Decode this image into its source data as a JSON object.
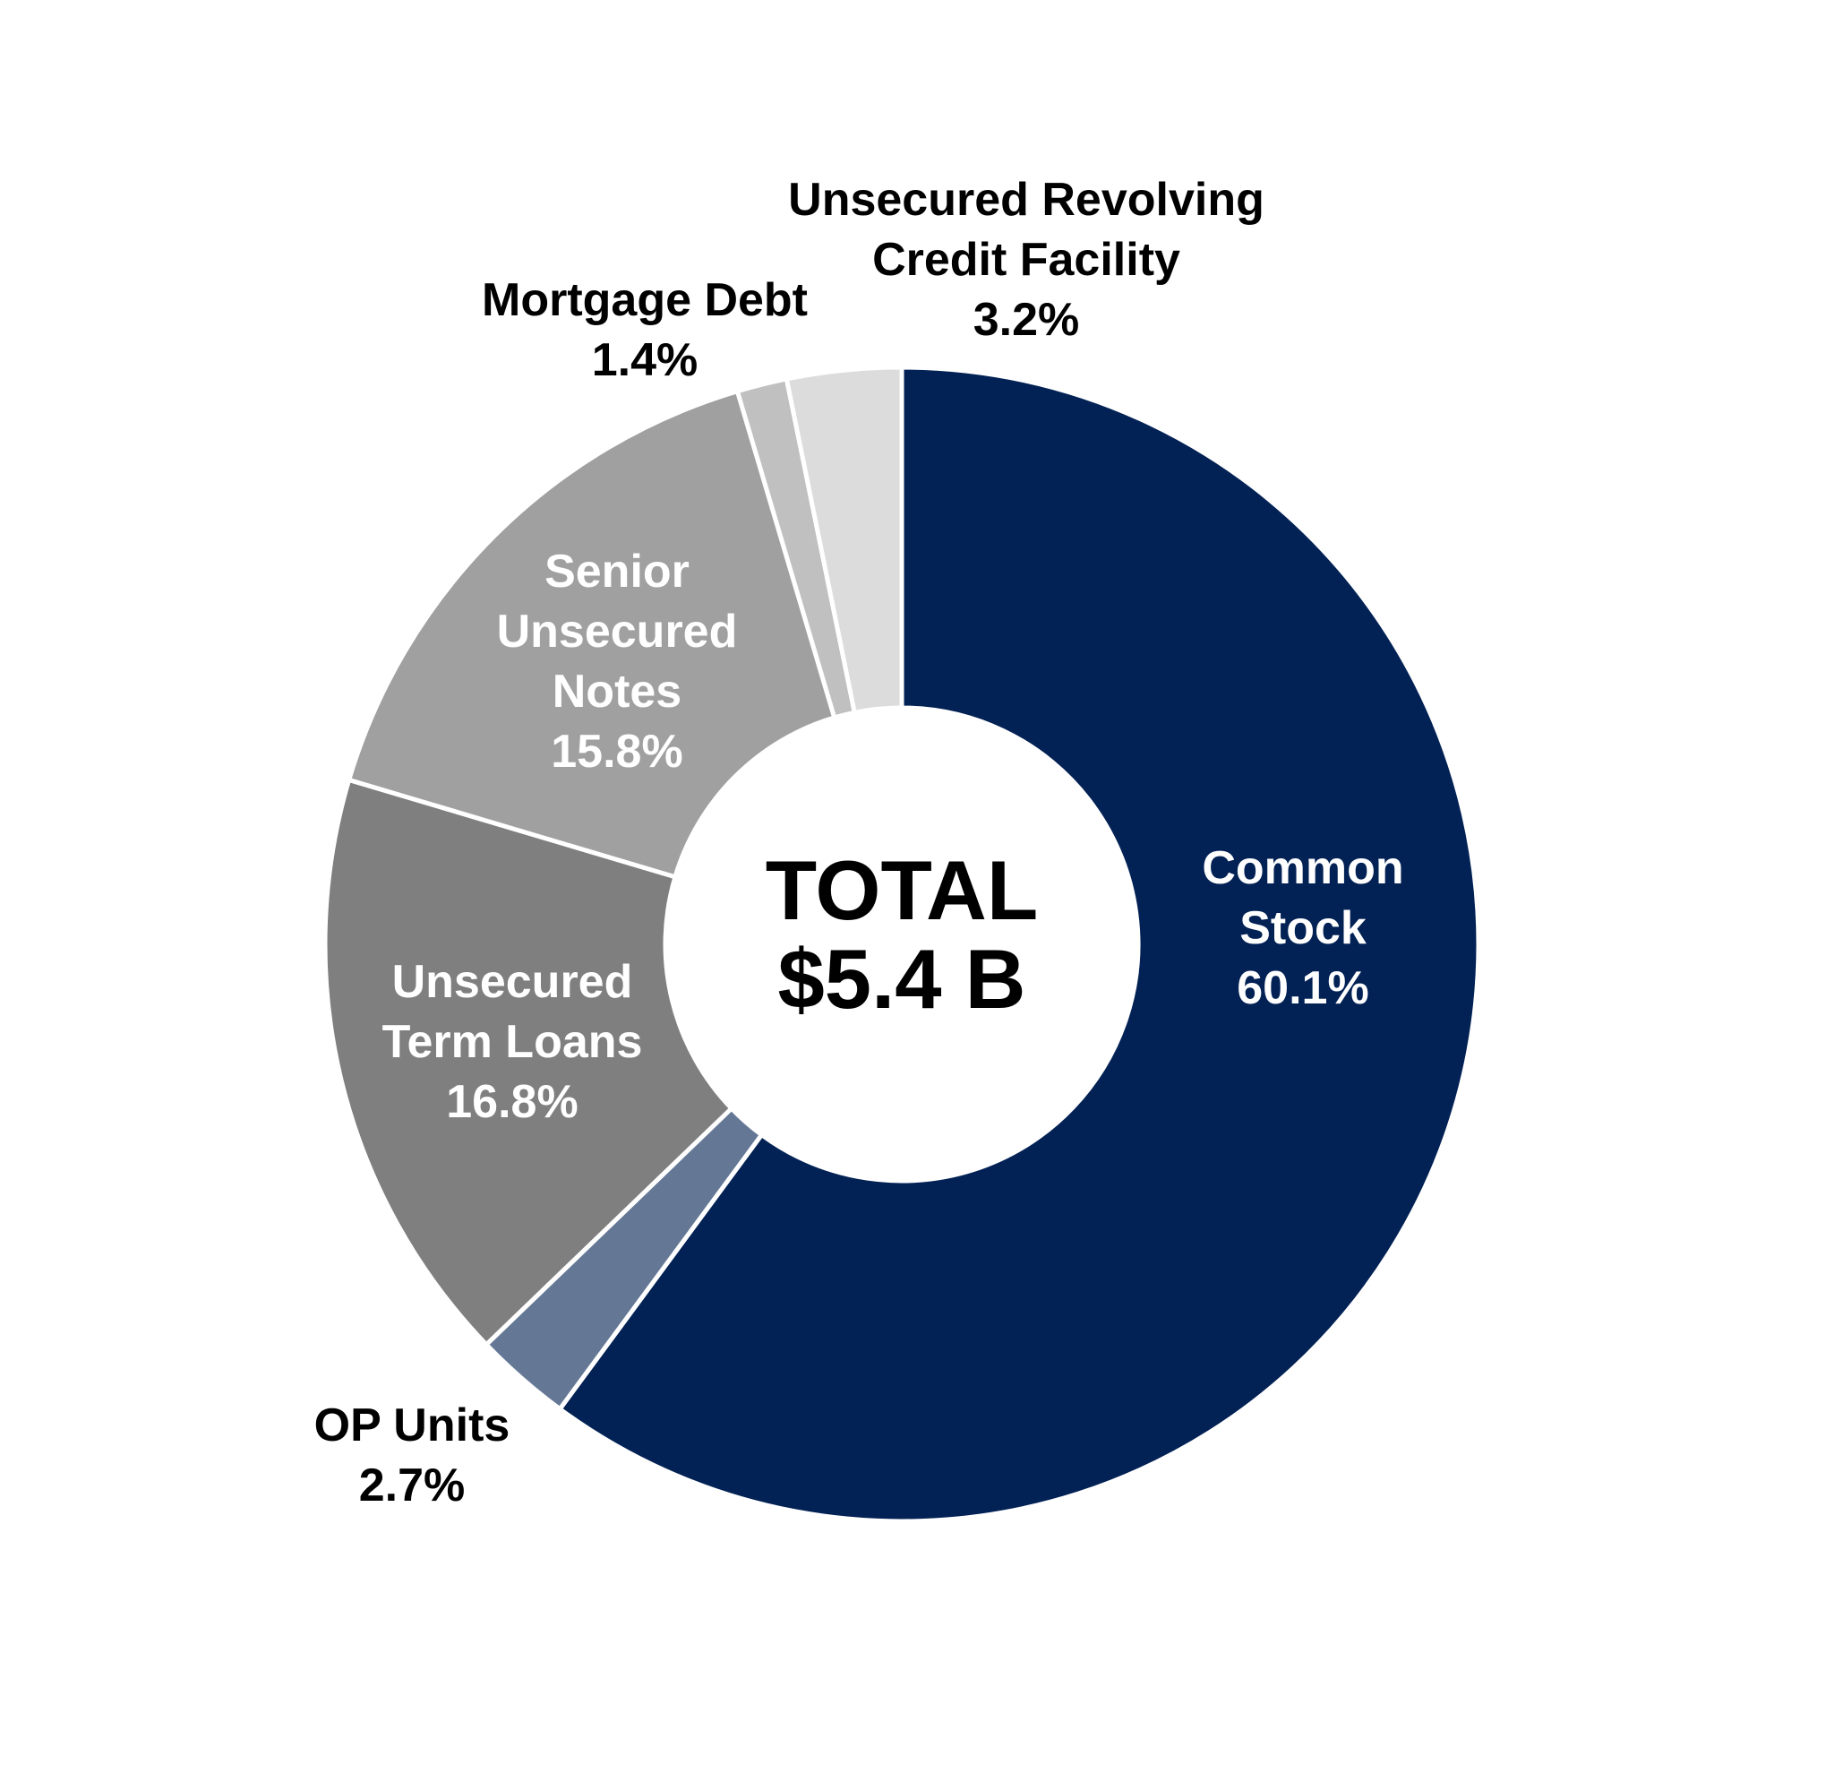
{
  "chart_data": {
    "type": "pie",
    "variant": "donut",
    "center_label": [
      "TOTAL",
      "$5.4 B"
    ],
    "total": 5.4,
    "slices": [
      {
        "name": "Common Stock",
        "label_lines": [
          "Common",
          "Stock"
        ],
        "percent_label": "60.1%",
        "value": 60.1,
        "color": "#022154",
        "label_color": "#ffffff"
      },
      {
        "name": "OP Units",
        "label_lines": [
          "OP Units"
        ],
        "percent_label": "2.7%",
        "value": 2.7,
        "color": "#647896",
        "label_color": "#000000"
      },
      {
        "name": "Unsecured Term Loans",
        "label_lines": [
          "Unsecured",
          "Term Loans"
        ],
        "percent_label": "16.8%",
        "value": 16.8,
        "color": "#7f7f7f",
        "label_color": "#ffffff"
      },
      {
        "name": "Senior Unsecured Notes",
        "label_lines": [
          "Senior",
          "Unsecured",
          "Notes"
        ],
        "percent_label": "15.8%",
        "value": 15.8,
        "color": "#a0a0a0",
        "label_color": "#ffffff"
      },
      {
        "name": "Mortgage Debt",
        "label_lines": [
          "Mortgage Debt"
        ],
        "percent_label": "1.4%",
        "value": 1.4,
        "color": "#c0c0c0",
        "label_color": "#000000"
      },
      {
        "name": "Unsecured Revolving Credit Facility",
        "label_lines": [
          "Unsecured Revolving",
          "Credit Facility"
        ],
        "percent_label": "3.2%",
        "value": 3.2,
        "color": "#dcdcdc",
        "label_color": "#000000"
      }
    ],
    "legend": "none",
    "start_angle": "12 o'clock",
    "direction": "clockwise"
  }
}
